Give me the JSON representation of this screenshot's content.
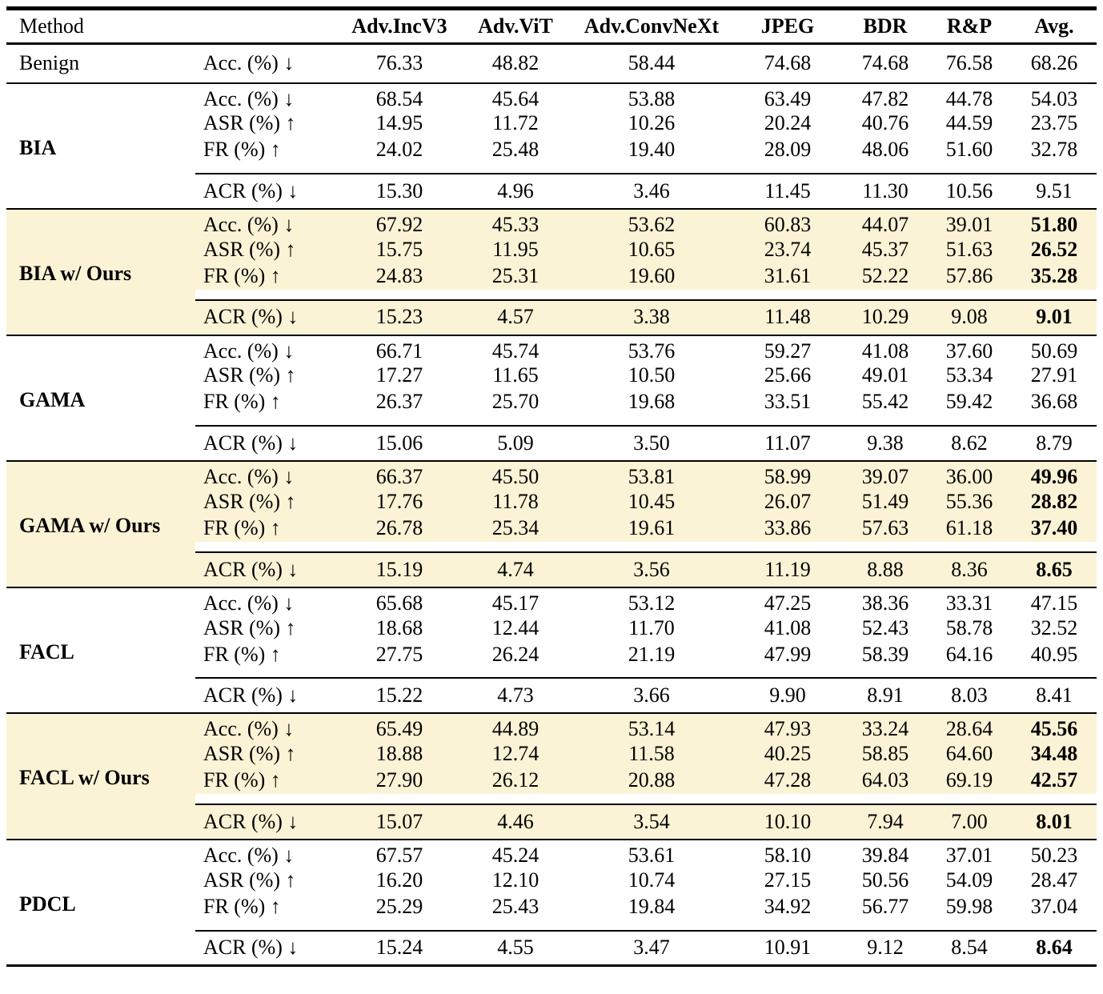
{
  "page": {
    "highlight_color": "#fbf3d5",
    "rule_color": "#000000",
    "arrow_down": "↓",
    "arrow_up": "↑"
  },
  "table": {
    "header": {
      "method": "Method",
      "metric": "",
      "columns": [
        "Adv.IncV3",
        "Adv.ViT",
        "Adv.ConvNeXt",
        "JPEG",
        "BDR",
        "R&P",
        "Avg."
      ]
    },
    "benign": {
      "method": "Benign",
      "metric": "Acc. (%) ↓",
      "values": [
        "76.33",
        "48.82",
        "58.44",
        "74.68",
        "74.68",
        "76.58",
        "68.26"
      ]
    },
    "sections": [
      {
        "method": "BIA",
        "highlighted": false,
        "rows": [
          {
            "metric": "Acc. (%) ↓",
            "values": [
              "68.54",
              "45.64",
              "53.88",
              "63.49",
              "47.82",
              "44.78",
              "54.03"
            ],
            "avg_bold": false
          },
          {
            "metric": "ASR (%) ↑",
            "values": [
              "14.95",
              "11.72",
              "10.26",
              "20.24",
              "40.76",
              "44.59",
              "23.75"
            ],
            "avg_bold": false
          },
          {
            "metric": "FR (%) ↑",
            "values": [
              "24.02",
              "25.48",
              "19.40",
              "28.09",
              "48.06",
              "51.60",
              "32.78"
            ],
            "avg_bold": false
          }
        ],
        "acr": {
          "metric": "ACR (%) ↓",
          "values": [
            "15.30",
            "4.96",
            "3.46",
            "11.45",
            "11.30",
            "10.56",
            "9.51"
          ],
          "avg_bold": false
        }
      },
      {
        "method": "BIA w/ Ours",
        "highlighted": true,
        "rows": [
          {
            "metric": "Acc. (%) ↓",
            "values": [
              "67.92",
              "45.33",
              "53.62",
              "60.83",
              "44.07",
              "39.01",
              "51.80"
            ],
            "avg_bold": true
          },
          {
            "metric": "ASR (%) ↑",
            "values": [
              "15.75",
              "11.95",
              "10.65",
              "23.74",
              "45.37",
              "51.63",
              "26.52"
            ],
            "avg_bold": true
          },
          {
            "metric": "FR (%) ↑",
            "values": [
              "24.83",
              "25.31",
              "19.60",
              "31.61",
              "52.22",
              "57.86",
              "35.28"
            ],
            "avg_bold": true
          }
        ],
        "acr": {
          "metric": "ACR (%) ↓",
          "values": [
            "15.23",
            "4.57",
            "3.38",
            "11.48",
            "10.29",
            "9.08",
            "9.01"
          ],
          "avg_bold": true
        }
      },
      {
        "method": "GAMA",
        "highlighted": false,
        "rows": [
          {
            "metric": "Acc. (%) ↓",
            "values": [
              "66.71",
              "45.74",
              "53.76",
              "59.27",
              "41.08",
              "37.60",
              "50.69"
            ],
            "avg_bold": false
          },
          {
            "metric": "ASR (%) ↑",
            "values": [
              "17.27",
              "11.65",
              "10.50",
              "25.66",
              "49.01",
              "53.34",
              "27.91"
            ],
            "avg_bold": false
          },
          {
            "metric": "FR (%) ↑",
            "values": [
              "26.37",
              "25.70",
              "19.68",
              "33.51",
              "55.42",
              "59.42",
              "36.68"
            ],
            "avg_bold": false
          }
        ],
        "acr": {
          "metric": "ACR (%) ↓",
          "values": [
            "15.06",
            "5.09",
            "3.50",
            "11.07",
            "9.38",
            "8.62",
            "8.79"
          ],
          "avg_bold": false
        }
      },
      {
        "method": "GAMA w/ Ours",
        "highlighted": true,
        "rows": [
          {
            "metric": "Acc. (%) ↓",
            "values": [
              "66.37",
              "45.50",
              "53.81",
              "58.99",
              "39.07",
              "36.00",
              "49.96"
            ],
            "avg_bold": true
          },
          {
            "metric": "ASR (%) ↑",
            "values": [
              "17.76",
              "11.78",
              "10.45",
              "26.07",
              "51.49",
              "55.36",
              "28.82"
            ],
            "avg_bold": true
          },
          {
            "metric": "FR (%) ↑",
            "values": [
              "26.78",
              "25.34",
              "19.61",
              "33.86",
              "57.63",
              "61.18",
              "37.40"
            ],
            "avg_bold": true
          }
        ],
        "acr": {
          "metric": "ACR (%) ↓",
          "values": [
            "15.19",
            "4.74",
            "3.56",
            "11.19",
            "8.88",
            "8.36",
            "8.65"
          ],
          "avg_bold": true
        }
      },
      {
        "method": "FACL",
        "highlighted": false,
        "rows": [
          {
            "metric": "Acc. (%) ↓",
            "values": [
              "65.68",
              "45.17",
              "53.12",
              "47.25",
              "38.36",
              "33.31",
              "47.15"
            ],
            "avg_bold": false
          },
          {
            "metric": "ASR (%) ↑",
            "values": [
              "18.68",
              "12.44",
              "11.70",
              "41.08",
              "52.43",
              "58.78",
              "32.52"
            ],
            "avg_bold": false
          },
          {
            "metric": "FR (%) ↑",
            "values": [
              "27.75",
              "26.24",
              "21.19",
              "47.99",
              "58.39",
              "64.16",
              "40.95"
            ],
            "avg_bold": false
          }
        ],
        "acr": {
          "metric": "ACR (%) ↓",
          "values": [
            "15.22",
            "4.73",
            "3.66",
            "9.90",
            "8.91",
            "8.03",
            "8.41"
          ],
          "avg_bold": false
        }
      },
      {
        "method": "FACL w/ Ours",
        "highlighted": true,
        "rows": [
          {
            "metric": "Acc. (%) ↓",
            "values": [
              "65.49",
              "44.89",
              "53.14",
              "47.93",
              "33.24",
              "28.64",
              "45.56"
            ],
            "avg_bold": true
          },
          {
            "metric": "ASR (%) ↑",
            "values": [
              "18.88",
              "12.74",
              "11.58",
              "40.25",
              "58.85",
              "64.60",
              "34.48"
            ],
            "avg_bold": true
          },
          {
            "metric": "FR (%) ↑",
            "values": [
              "27.90",
              "26.12",
              "20.88",
              "47.28",
              "64.03",
              "69.19",
              "42.57"
            ],
            "avg_bold": true
          }
        ],
        "acr": {
          "metric": "ACR (%) ↓",
          "values": [
            "15.07",
            "4.46",
            "3.54",
            "10.10",
            "7.94",
            "7.00",
            "8.01"
          ],
          "avg_bold": true
        }
      },
      {
        "method": "PDCL",
        "highlighted": false,
        "rows": [
          {
            "metric": "Acc. (%) ↓",
            "values": [
              "67.57",
              "45.24",
              "53.61",
              "58.10",
              "39.84",
              "37.01",
              "50.23"
            ],
            "avg_bold": false
          },
          {
            "metric": "ASR (%) ↑",
            "values": [
              "16.20",
              "12.10",
              "10.74",
              "27.15",
              "50.56",
              "54.09",
              "28.47"
            ],
            "avg_bold": false
          },
          {
            "metric": "FR (%) ↑",
            "values": [
              "25.29",
              "25.43",
              "19.84",
              "34.92",
              "56.77",
              "59.98",
              "37.04"
            ],
            "avg_bold": false
          }
        ],
        "acr": {
          "metric": "ACR (%) ↓",
          "values": [
            "15.24",
            "4.55",
            "3.47",
            "10.91",
            "9.12",
            "8.54",
            "8.64"
          ],
          "avg_bold": true
        }
      }
    ]
  }
}
